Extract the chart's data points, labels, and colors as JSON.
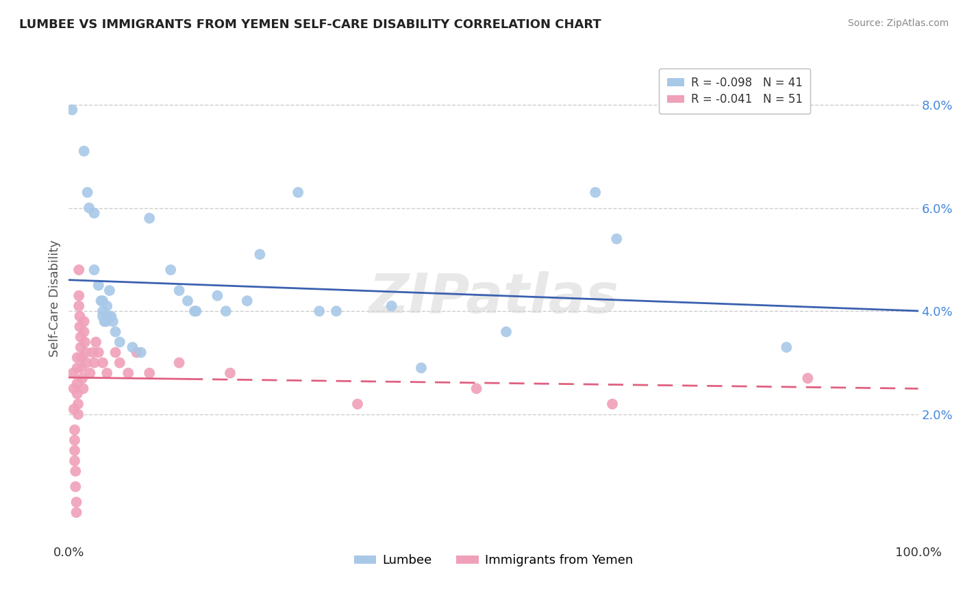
{
  "title": "LUMBEE VS IMMIGRANTS FROM YEMEN SELF-CARE DISABILITY CORRELATION CHART",
  "source": "Source: ZipAtlas.com",
  "ylabel": "Self-Care Disability",
  "watermark": "ZIPatlas",
  "legend_lumbee_r": "R = -0.098",
  "legend_lumbee_n": "N = 41",
  "legend_yemen_r": "R = -0.041",
  "legend_yemen_n": "N = 51",
  "legend_label1": "Lumbee",
  "legend_label2": "Immigrants from Yemen",
  "blue_color": "#A8C8E8",
  "pink_color": "#F0A0B8",
  "blue_line_color": "#3A60B0",
  "pink_line_color": "#E06080",
  "grid_color": "#CCCCCC",
  "background_color": "#FFFFFF",
  "lumbee_points": [
    [
      0.004,
      0.079
    ],
    [
      0.018,
      0.071
    ],
    [
      0.022,
      0.063
    ],
    [
      0.024,
      0.06
    ],
    [
      0.03,
      0.059
    ],
    [
      0.03,
      0.048
    ],
    [
      0.035,
      0.045
    ],
    [
      0.038,
      0.042
    ],
    [
      0.04,
      0.042
    ],
    [
      0.04,
      0.04
    ],
    [
      0.04,
      0.039
    ],
    [
      0.042,
      0.038
    ],
    [
      0.044,
      0.038
    ],
    [
      0.045,
      0.041
    ],
    [
      0.046,
      0.039
    ],
    [
      0.048,
      0.044
    ],
    [
      0.05,
      0.039
    ],
    [
      0.052,
      0.038
    ],
    [
      0.055,
      0.036
    ],
    [
      0.06,
      0.034
    ],
    [
      0.075,
      0.033
    ],
    [
      0.085,
      0.032
    ],
    [
      0.095,
      0.058
    ],
    [
      0.12,
      0.048
    ],
    [
      0.13,
      0.044
    ],
    [
      0.14,
      0.042
    ],
    [
      0.148,
      0.04
    ],
    [
      0.175,
      0.043
    ],
    [
      0.185,
      0.04
    ],
    [
      0.21,
      0.042
    ],
    [
      0.225,
      0.051
    ],
    [
      0.27,
      0.063
    ],
    [
      0.295,
      0.04
    ],
    [
      0.315,
      0.04
    ],
    [
      0.38,
      0.041
    ],
    [
      0.415,
      0.029
    ],
    [
      0.515,
      0.036
    ],
    [
      0.62,
      0.063
    ],
    [
      0.645,
      0.054
    ],
    [
      0.845,
      0.033
    ],
    [
      0.15,
      0.04
    ]
  ],
  "yemen_points": [
    [
      0.005,
      0.028
    ],
    [
      0.006,
      0.025
    ],
    [
      0.006,
      0.021
    ],
    [
      0.007,
      0.017
    ],
    [
      0.007,
      0.015
    ],
    [
      0.007,
      0.013
    ],
    [
      0.007,
      0.011
    ],
    [
      0.008,
      0.009
    ],
    [
      0.008,
      0.006
    ],
    [
      0.009,
      0.003
    ],
    [
      0.009,
      0.001
    ],
    [
      0.01,
      0.031
    ],
    [
      0.01,
      0.029
    ],
    [
      0.01,
      0.026
    ],
    [
      0.01,
      0.024
    ],
    [
      0.011,
      0.022
    ],
    [
      0.011,
      0.02
    ],
    [
      0.012,
      0.048
    ],
    [
      0.012,
      0.043
    ],
    [
      0.012,
      0.041
    ],
    [
      0.013,
      0.039
    ],
    [
      0.013,
      0.037
    ],
    [
      0.014,
      0.035
    ],
    [
      0.014,
      0.033
    ],
    [
      0.015,
      0.031
    ],
    [
      0.015,
      0.029
    ],
    [
      0.016,
      0.027
    ],
    [
      0.017,
      0.025
    ],
    [
      0.018,
      0.038
    ],
    [
      0.018,
      0.036
    ],
    [
      0.019,
      0.034
    ],
    [
      0.02,
      0.032
    ],
    [
      0.021,
      0.03
    ],
    [
      0.025,
      0.028
    ],
    [
      0.028,
      0.032
    ],
    [
      0.03,
      0.03
    ],
    [
      0.032,
      0.034
    ],
    [
      0.035,
      0.032
    ],
    [
      0.04,
      0.03
    ],
    [
      0.045,
      0.028
    ],
    [
      0.055,
      0.032
    ],
    [
      0.06,
      0.03
    ],
    [
      0.07,
      0.028
    ],
    [
      0.08,
      0.032
    ],
    [
      0.095,
      0.028
    ],
    [
      0.13,
      0.03
    ],
    [
      0.19,
      0.028
    ],
    [
      0.34,
      0.022
    ],
    [
      0.48,
      0.025
    ],
    [
      0.64,
      0.022
    ],
    [
      0.87,
      0.027
    ]
  ]
}
